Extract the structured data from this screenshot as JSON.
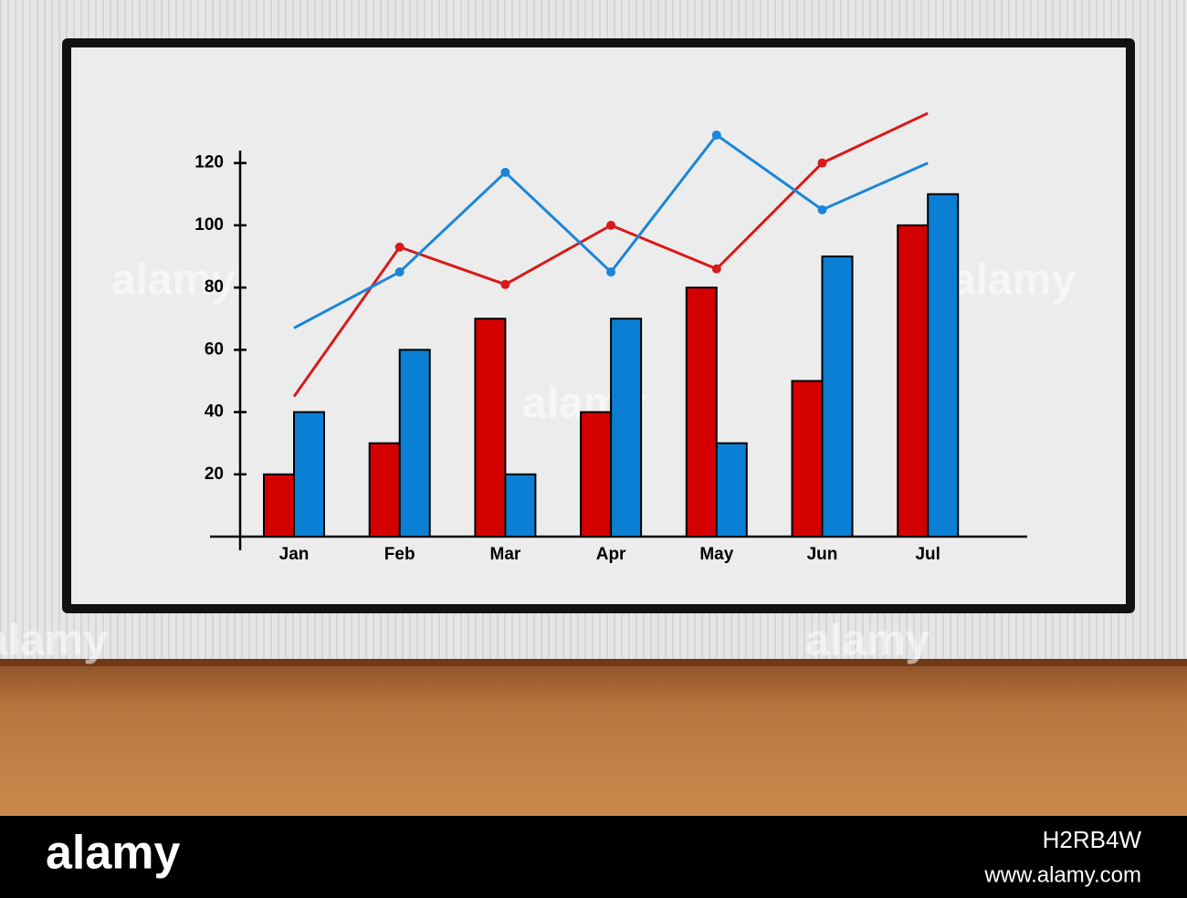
{
  "chart_data": [
    {
      "type": "bar",
      "categories": [
        "Jan",
        "Feb",
        "Mar",
        "Apr",
        "May",
        "Jun",
        "Jul"
      ],
      "series": [
        {
          "color": "#d40000",
          "values": [
            20,
            30,
            70,
            40,
            80,
            50,
            100
          ]
        },
        {
          "color": "#0a7fd4",
          "values": [
            40,
            60,
            20,
            70,
            30,
            90,
            110
          ]
        }
      ],
      "ylim": [
        0,
        124
      ],
      "yticks": [
        20,
        40,
        60,
        80,
        100,
        120
      ]
    },
    {
      "type": "line",
      "series": [
        {
          "color": "#d81a1a",
          "values": [
            45,
            93,
            81,
            100,
            86,
            120,
            136
          ]
        },
        {
          "color": "#1a86d8",
          "values": [
            67,
            85,
            117,
            85,
            129,
            105,
            120
          ]
        }
      ],
      "ylim": [
        0,
        124
      ]
    }
  ],
  "watermark": {
    "brand": "alamy",
    "image_id": "H2RB4W",
    "url": "www.alamy.com"
  }
}
